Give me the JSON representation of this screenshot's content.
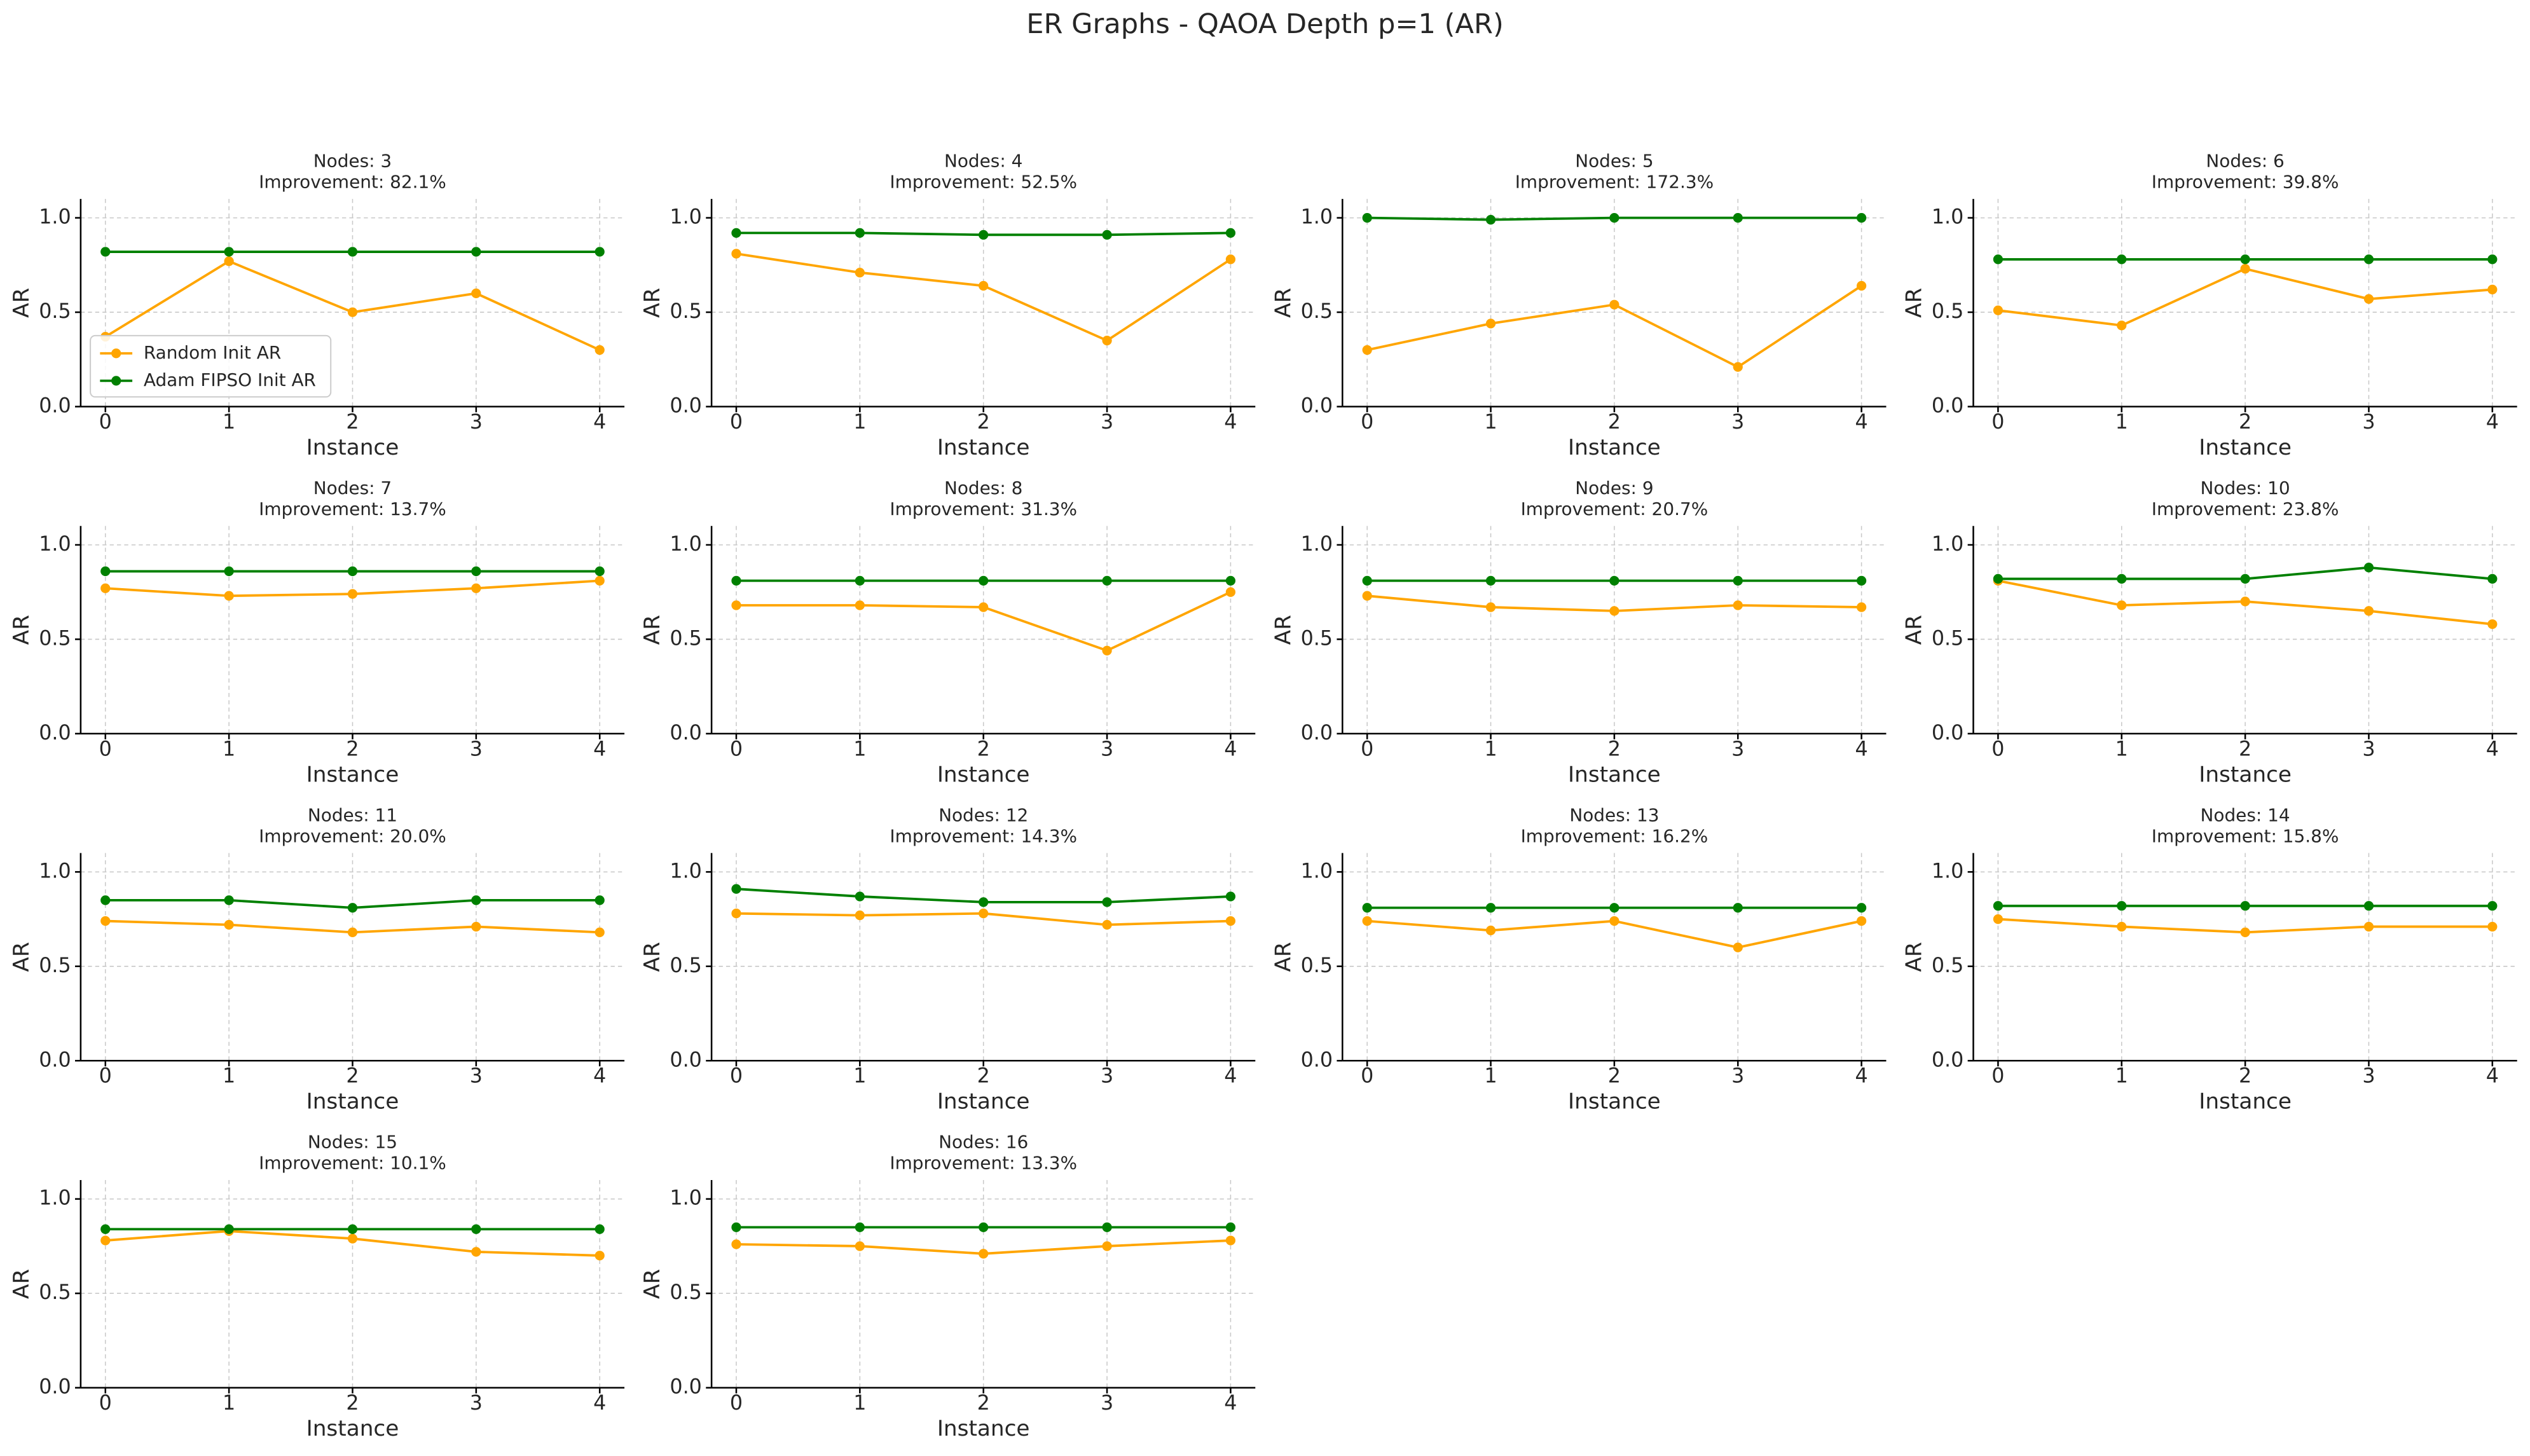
{
  "title": "ER Graphs - QAOA Depth p=1 (AR)",
  "chart_data": [
    {
      "type": "line",
      "title": "Nodes: 3",
      "subtitle": "Improvement: 82.1%",
      "xlabel": "Instance",
      "ylabel": "AR",
      "x": [
        0,
        1,
        2,
        3,
        4
      ],
      "xlim": [
        -0.2,
        4.2
      ],
      "xticks": [
        0,
        1,
        2,
        3,
        4
      ],
      "ylim": [
        0,
        1.1
      ],
      "yticks": [
        {
          "value": 0,
          "label": "0.0"
        },
        {
          "value": 0.5,
          "label": "0.5"
        },
        {
          "value": 1,
          "label": "1.0"
        }
      ],
      "grid": true,
      "legend": "lower left",
      "series": [
        {
          "name": "Random Init AR",
          "color": "#ffa500",
          "values": [
            0.37,
            0.77,
            0.5,
            0.6,
            0.3
          ]
        },
        {
          "name": "Adam FIPSO Init AR",
          "color": "#008000",
          "values": [
            0.82,
            0.82,
            0.82,
            0.82,
            0.82
          ]
        }
      ]
    },
    {
      "type": "line",
      "title": "Nodes: 4",
      "subtitle": "Improvement: 52.5%",
      "xlabel": "Instance",
      "ylabel": "AR",
      "x": [
        0,
        1,
        2,
        3,
        4
      ],
      "xlim": [
        -0.2,
        4.2
      ],
      "xticks": [
        0,
        1,
        2,
        3,
        4
      ],
      "ylim": [
        0,
        1.1
      ],
      "yticks": [
        {
          "value": 0,
          "label": "0.0"
        },
        {
          "value": 0.5,
          "label": "0.5"
        },
        {
          "value": 1,
          "label": "1.0"
        }
      ],
      "grid": true,
      "series": [
        {
          "color": "#ffa500",
          "values": [
            0.81,
            0.71,
            0.64,
            0.35,
            0.78
          ]
        },
        {
          "color": "#008000",
          "values": [
            0.92,
            0.92,
            0.91,
            0.91,
            0.92
          ]
        }
      ]
    },
    {
      "type": "line",
      "title": "Nodes: 5",
      "subtitle": "Improvement: 172.3%",
      "xlabel": "Instance",
      "ylabel": "AR",
      "x": [
        0,
        1,
        2,
        3,
        4
      ],
      "xlim": [
        -0.2,
        4.2
      ],
      "xticks": [
        0,
        1,
        2,
        3,
        4
      ],
      "ylim": [
        0,
        1.1
      ],
      "yticks": [
        {
          "value": 0,
          "label": "0.0"
        },
        {
          "value": 0.5,
          "label": "0.5"
        },
        {
          "value": 1,
          "label": "1.0"
        }
      ],
      "grid": true,
      "series": [
        {
          "color": "#ffa500",
          "values": [
            0.3,
            0.44,
            0.54,
            0.21,
            0.64
          ]
        },
        {
          "color": "#008000",
          "values": [
            1.0,
            0.99,
            1.0,
            1.0,
            1.0
          ]
        }
      ]
    },
    {
      "type": "line",
      "title": "Nodes: 6",
      "subtitle": "Improvement: 39.8%",
      "xlabel": "Instance",
      "ylabel": "AR",
      "x": [
        0,
        1,
        2,
        3,
        4
      ],
      "xlim": [
        -0.2,
        4.2
      ],
      "xticks": [
        0,
        1,
        2,
        3,
        4
      ],
      "ylim": [
        0,
        1.1
      ],
      "yticks": [
        {
          "value": 0,
          "label": "0.0"
        },
        {
          "value": 0.5,
          "label": "0.5"
        },
        {
          "value": 1,
          "label": "1.0"
        }
      ],
      "grid": true,
      "series": [
        {
          "color": "#ffa500",
          "values": [
            0.51,
            0.43,
            0.73,
            0.57,
            0.62
          ]
        },
        {
          "color": "#008000",
          "values": [
            0.78,
            0.78,
            0.78,
            0.78,
            0.78
          ]
        }
      ]
    },
    {
      "type": "line",
      "title": "Nodes: 7",
      "subtitle": "Improvement: 13.7%",
      "xlabel": "Instance",
      "ylabel": "AR",
      "x": [
        0,
        1,
        2,
        3,
        4
      ],
      "xlim": [
        -0.2,
        4.2
      ],
      "xticks": [
        0,
        1,
        2,
        3,
        4
      ],
      "ylim": [
        0,
        1.1
      ],
      "yticks": [
        {
          "value": 0,
          "label": "0.0"
        },
        {
          "value": 0.5,
          "label": "0.5"
        },
        {
          "value": 1,
          "label": "1.0"
        }
      ],
      "grid": true,
      "series": [
        {
          "color": "#ffa500",
          "values": [
            0.77,
            0.73,
            0.74,
            0.77,
            0.81
          ]
        },
        {
          "color": "#008000",
          "values": [
            0.86,
            0.86,
            0.86,
            0.86,
            0.86
          ]
        }
      ]
    },
    {
      "type": "line",
      "title": "Nodes: 8",
      "subtitle": "Improvement: 31.3%",
      "xlabel": "Instance",
      "ylabel": "AR",
      "x": [
        0,
        1,
        2,
        3,
        4
      ],
      "xlim": [
        -0.2,
        4.2
      ],
      "xticks": [
        0,
        1,
        2,
        3,
        4
      ],
      "ylim": [
        0,
        1.1
      ],
      "yticks": [
        {
          "value": 0,
          "label": "0.0"
        },
        {
          "value": 0.5,
          "label": "0.5"
        },
        {
          "value": 1,
          "label": "1.0"
        }
      ],
      "grid": true,
      "series": [
        {
          "color": "#ffa500",
          "values": [
            0.68,
            0.68,
            0.67,
            0.44,
            0.75
          ]
        },
        {
          "color": "#008000",
          "values": [
            0.81,
            0.81,
            0.81,
            0.81,
            0.81
          ]
        }
      ]
    },
    {
      "type": "line",
      "title": "Nodes: 9",
      "subtitle": "Improvement: 20.7%",
      "xlabel": "Instance",
      "ylabel": "AR",
      "x": [
        0,
        1,
        2,
        3,
        4
      ],
      "xlim": [
        -0.2,
        4.2
      ],
      "xticks": [
        0,
        1,
        2,
        3,
        4
      ],
      "ylim": [
        0,
        1.1
      ],
      "yticks": [
        {
          "value": 0,
          "label": "0.0"
        },
        {
          "value": 0.5,
          "label": "0.5"
        },
        {
          "value": 1,
          "label": "1.0"
        }
      ],
      "grid": true,
      "series": [
        {
          "color": "#ffa500",
          "values": [
            0.73,
            0.67,
            0.65,
            0.68,
            0.67
          ]
        },
        {
          "color": "#008000",
          "values": [
            0.81,
            0.81,
            0.81,
            0.81,
            0.81
          ]
        }
      ]
    },
    {
      "type": "line",
      "title": "Nodes: 10",
      "subtitle": "Improvement: 23.8%",
      "xlabel": "Instance",
      "ylabel": "AR",
      "x": [
        0,
        1,
        2,
        3,
        4
      ],
      "xlim": [
        -0.2,
        4.2
      ],
      "xticks": [
        0,
        1,
        2,
        3,
        4
      ],
      "ylim": [
        0,
        1.1
      ],
      "yticks": [
        {
          "value": 0,
          "label": "0.0"
        },
        {
          "value": 0.5,
          "label": "0.5"
        },
        {
          "value": 1,
          "label": "1.0"
        }
      ],
      "grid": true,
      "series": [
        {
          "color": "#ffa500",
          "values": [
            0.81,
            0.68,
            0.7,
            0.65,
            0.58
          ]
        },
        {
          "color": "#008000",
          "values": [
            0.82,
            0.82,
            0.82,
            0.88,
            0.82
          ]
        }
      ]
    },
    {
      "type": "line",
      "title": "Nodes: 11",
      "subtitle": "Improvement: 20.0%",
      "xlabel": "Instance",
      "ylabel": "AR",
      "x": [
        0,
        1,
        2,
        3,
        4
      ],
      "xlim": [
        -0.2,
        4.2
      ],
      "xticks": [
        0,
        1,
        2,
        3,
        4
      ],
      "ylim": [
        0,
        1.1
      ],
      "yticks": [
        {
          "value": 0,
          "label": "0.0"
        },
        {
          "value": 0.5,
          "label": "0.5"
        },
        {
          "value": 1,
          "label": "1.0"
        }
      ],
      "grid": true,
      "series": [
        {
          "color": "#ffa500",
          "values": [
            0.74,
            0.72,
            0.68,
            0.71,
            0.68
          ]
        },
        {
          "color": "#008000",
          "values": [
            0.85,
            0.85,
            0.81,
            0.85,
            0.85
          ]
        }
      ]
    },
    {
      "type": "line",
      "title": "Nodes: 12",
      "subtitle": "Improvement: 14.3%",
      "xlabel": "Instance",
      "ylabel": "AR",
      "x": [
        0,
        1,
        2,
        3,
        4
      ],
      "xlim": [
        -0.2,
        4.2
      ],
      "xticks": [
        0,
        1,
        2,
        3,
        4
      ],
      "ylim": [
        0,
        1.1
      ],
      "yticks": [
        {
          "value": 0,
          "label": "0.0"
        },
        {
          "value": 0.5,
          "label": "0.5"
        },
        {
          "value": 1,
          "label": "1.0"
        }
      ],
      "grid": true,
      "series": [
        {
          "color": "#ffa500",
          "values": [
            0.78,
            0.77,
            0.78,
            0.72,
            0.74
          ]
        },
        {
          "color": "#008000",
          "values": [
            0.91,
            0.87,
            0.84,
            0.84,
            0.87
          ]
        }
      ]
    },
    {
      "type": "line",
      "title": "Nodes: 13",
      "subtitle": "Improvement: 16.2%",
      "xlabel": "Instance",
      "ylabel": "AR",
      "x": [
        0,
        1,
        2,
        3,
        4
      ],
      "xlim": [
        -0.2,
        4.2
      ],
      "xticks": [
        0,
        1,
        2,
        3,
        4
      ],
      "ylim": [
        0,
        1.1
      ],
      "yticks": [
        {
          "value": 0,
          "label": "0.0"
        },
        {
          "value": 0.5,
          "label": "0.5"
        },
        {
          "value": 1,
          "label": "1.0"
        }
      ],
      "grid": true,
      "series": [
        {
          "color": "#ffa500",
          "values": [
            0.74,
            0.69,
            0.74,
            0.6,
            0.74
          ]
        },
        {
          "color": "#008000",
          "values": [
            0.81,
            0.81,
            0.81,
            0.81,
            0.81
          ]
        }
      ]
    },
    {
      "type": "line",
      "title": "Nodes: 14",
      "subtitle": "Improvement: 15.8%",
      "xlabel": "Instance",
      "ylabel": "AR",
      "x": [
        0,
        1,
        2,
        3,
        4
      ],
      "xlim": [
        -0.2,
        4.2
      ],
      "xticks": [
        0,
        1,
        2,
        3,
        4
      ],
      "ylim": [
        0,
        1.1
      ],
      "yticks": [
        {
          "value": 0,
          "label": "0.0"
        },
        {
          "value": 0.5,
          "label": "0.5"
        },
        {
          "value": 1,
          "label": "1.0"
        }
      ],
      "grid": true,
      "series": [
        {
          "color": "#ffa500",
          "values": [
            0.75,
            0.71,
            0.68,
            0.71,
            0.71
          ]
        },
        {
          "color": "#008000",
          "values": [
            0.82,
            0.82,
            0.82,
            0.82,
            0.82
          ]
        }
      ]
    },
    {
      "type": "line",
      "title": "Nodes: 15",
      "subtitle": "Improvement: 10.1%",
      "xlabel": "Instance",
      "ylabel": "AR",
      "x": [
        0,
        1,
        2,
        3,
        4
      ],
      "xlim": [
        -0.2,
        4.2
      ],
      "xticks": [
        0,
        1,
        2,
        3,
        4
      ],
      "ylim": [
        0,
        1.1
      ],
      "yticks": [
        {
          "value": 0,
          "label": "0.0"
        },
        {
          "value": 0.5,
          "label": "0.5"
        },
        {
          "value": 1,
          "label": "1.0"
        }
      ],
      "grid": true,
      "series": [
        {
          "color": "#ffa500",
          "values": [
            0.78,
            0.83,
            0.79,
            0.72,
            0.7
          ]
        },
        {
          "color": "#008000",
          "values": [
            0.84,
            0.84,
            0.84,
            0.84,
            0.84
          ]
        }
      ]
    },
    {
      "type": "line",
      "title": "Nodes: 16",
      "subtitle": "Improvement: 13.3%",
      "xlabel": "Instance",
      "ylabel": "AR",
      "x": [
        0,
        1,
        2,
        3,
        4
      ],
      "xlim": [
        -0.2,
        4.2
      ],
      "xticks": [
        0,
        1,
        2,
        3,
        4
      ],
      "ylim": [
        0,
        1.1
      ],
      "yticks": [
        {
          "value": 0,
          "label": "0.0"
        },
        {
          "value": 0.5,
          "label": "0.5"
        },
        {
          "value": 1,
          "label": "1.0"
        }
      ],
      "grid": true,
      "series": [
        {
          "color": "#ffa500",
          "values": [
            0.76,
            0.75,
            0.71,
            0.75,
            0.78
          ]
        },
        {
          "color": "#008000",
          "values": [
            0.85,
            0.85,
            0.85,
            0.85,
            0.85
          ]
        }
      ]
    }
  ]
}
